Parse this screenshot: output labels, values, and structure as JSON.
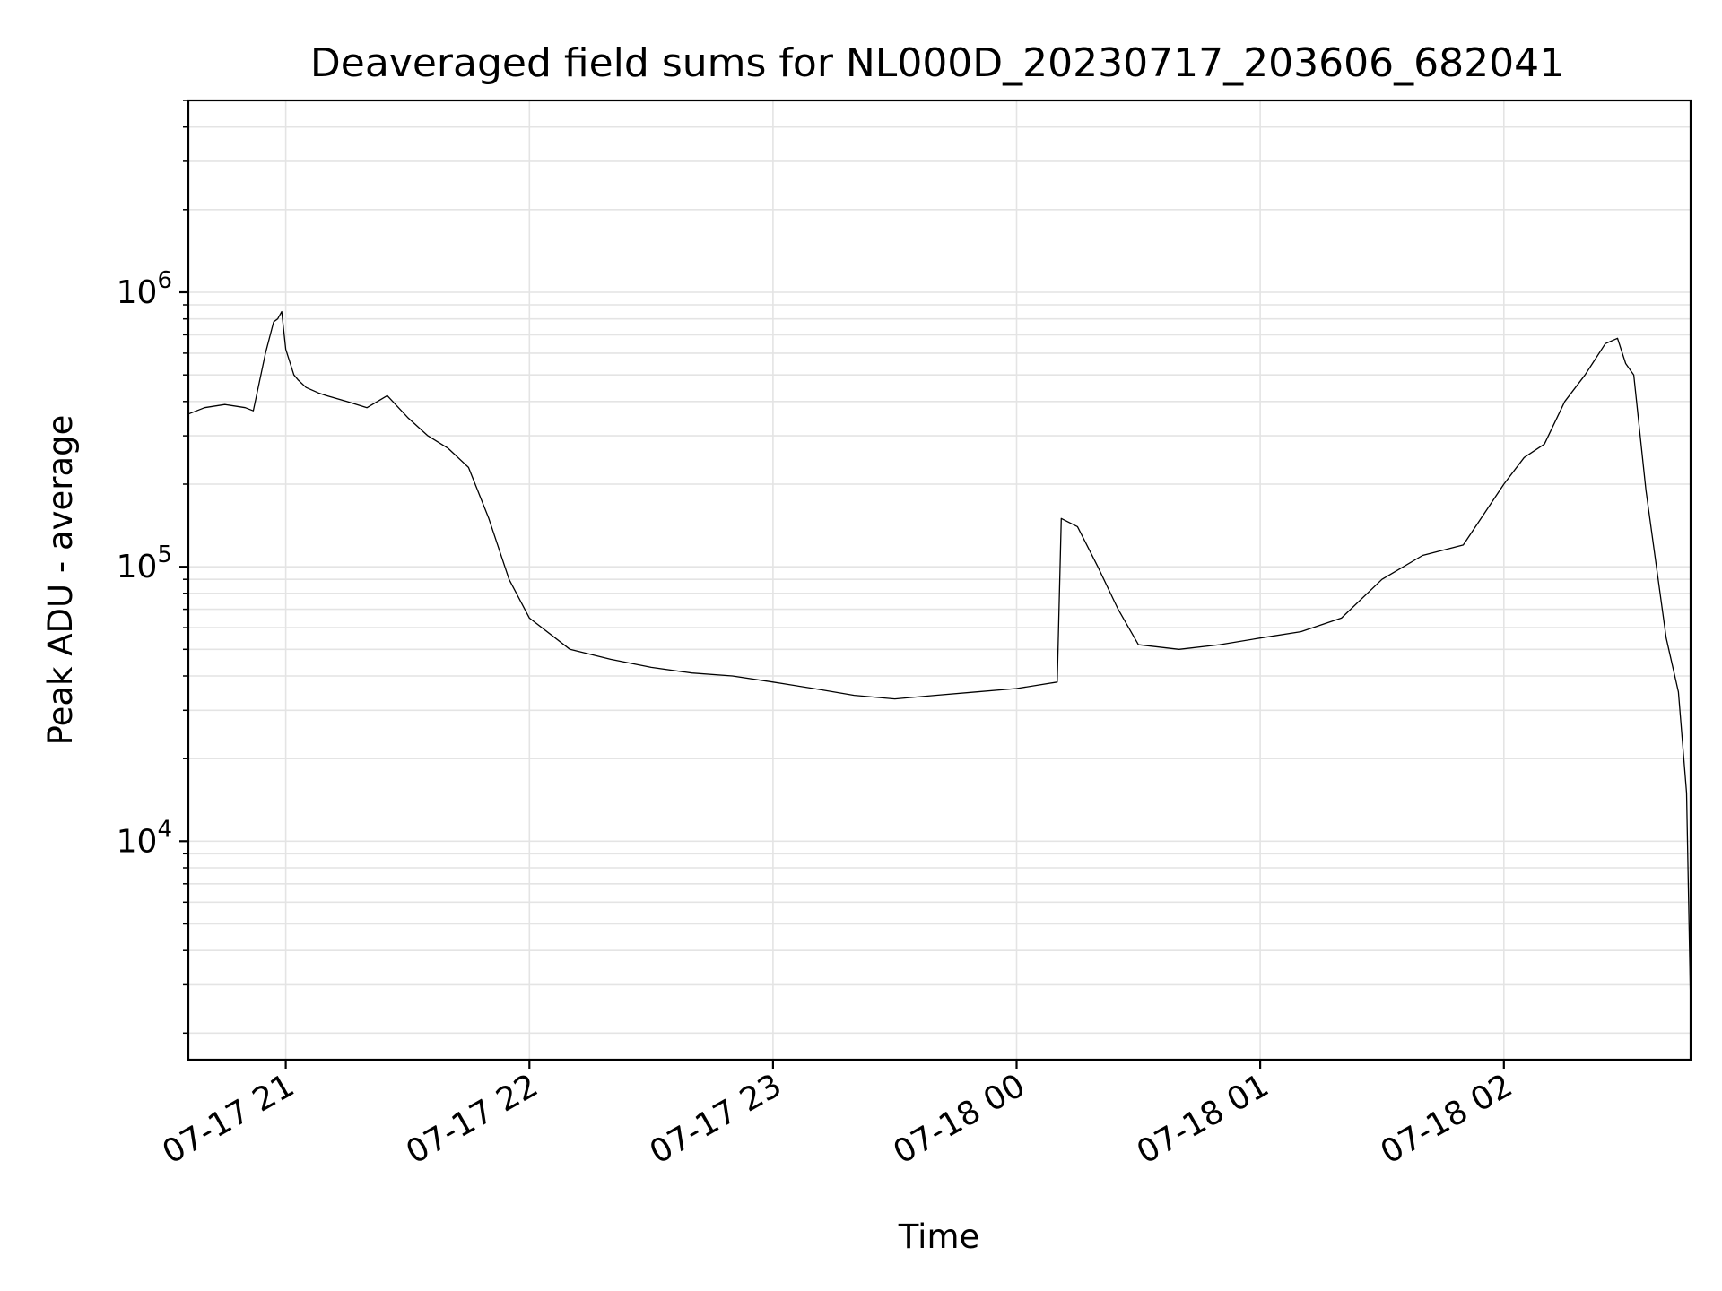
{
  "chart_data": {
    "type": "line",
    "title": "Deaveraged field sums for NL000D_20230717_203606_682041",
    "xlabel": "Time",
    "ylabel": "Peak ADU - average",
    "y_scale": "log",
    "grid": "major and minor",
    "x_tick_labels": [
      "07-17 21",
      "07-17 22",
      "07-17 23",
      "07-18 00",
      "07-18 01",
      "07-18 02"
    ],
    "x_ticks": [
      "2023-07-17 21:00",
      "2023-07-17 22:00",
      "2023-07-17 23:00",
      "2023-07-18 00:00",
      "2023-07-18 01:00",
      "2023-07-18 02:00"
    ],
    "xlim": [
      "2023-07-17 20:36",
      "2023-07-18 02:46"
    ],
    "y_ticks": [
      {
        "value": 10000,
        "base": "10",
        "exp": "4"
      },
      {
        "value": 100000,
        "base": "10",
        "exp": "5"
      },
      {
        "value": 1000000,
        "base": "10",
        "exp": "6"
      }
    ],
    "ylim": [
      1600,
      5000000
    ],
    "line_color": "#000000",
    "series": [
      {
        "x": [
          "2023-07-17 20:36",
          "2023-07-17 20:40",
          "2023-07-17 20:45",
          "2023-07-17 20:50",
          "2023-07-17 20:52",
          "2023-07-17 20:55",
          "2023-07-17 20:57",
          "2023-07-17 20:58",
          "2023-07-17 20:59",
          "2023-07-17 21:00",
          "2023-07-17 21:02",
          "2023-07-17 21:03",
          "2023-07-17 21:05",
          "2023-07-17 21:08",
          "2023-07-17 21:10",
          "2023-07-17 21:15",
          "2023-07-17 21:20",
          "2023-07-17 21:25",
          "2023-07-17 21:30",
          "2023-07-17 21:35",
          "2023-07-17 21:40",
          "2023-07-17 21:45",
          "2023-07-17 21:50",
          "2023-07-17 21:55",
          "2023-07-17 22:00",
          "2023-07-17 22:10",
          "2023-07-17 22:20",
          "2023-07-17 22:30",
          "2023-07-17 22:40",
          "2023-07-17 22:50",
          "2023-07-17 23:00",
          "2023-07-17 23:10",
          "2023-07-17 23:20",
          "2023-07-17 23:30",
          "2023-07-17 23:40",
          "2023-07-17 23:50",
          "2023-07-18 00:00",
          "2023-07-18 00:10",
          "2023-07-18 00:11",
          "2023-07-18 00:15",
          "2023-07-18 00:20",
          "2023-07-18 00:25",
          "2023-07-18 00:30",
          "2023-07-18 00:40",
          "2023-07-18 00:50",
          "2023-07-18 01:00",
          "2023-07-18 01:10",
          "2023-07-18 01:20",
          "2023-07-18 01:30",
          "2023-07-18 01:40",
          "2023-07-18 01:50",
          "2023-07-18 02:00",
          "2023-07-18 02:05",
          "2023-07-18 02:10",
          "2023-07-18 02:15",
          "2023-07-18 02:20",
          "2023-07-18 02:25",
          "2023-07-18 02:28",
          "2023-07-18 02:30",
          "2023-07-18 02:32",
          "2023-07-18 02:35",
          "2023-07-18 02:40",
          "2023-07-18 02:43",
          "2023-07-18 02:45",
          "2023-07-18 02:46"
        ],
        "y": [
          360000,
          380000,
          390000,
          380000,
          370000,
          600000,
          780000,
          800000,
          850000,
          620000,
          500000,
          480000,
          450000,
          430000,
          420000,
          400000,
          380000,
          420000,
          350000,
          300000,
          270000,
          230000,
          150000,
          90000,
          65000,
          50000,
          46000,
          43000,
          41000,
          40000,
          38000,
          36000,
          34000,
          33000,
          34000,
          35000,
          36000,
          38000,
          150000,
          140000,
          100000,
          70000,
          52000,
          50000,
          52000,
          55000,
          58000,
          65000,
          90000,
          110000,
          120000,
          200000,
          250000,
          280000,
          400000,
          500000,
          650000,
          680000,
          550000,
          500000,
          190000,
          55000,
          35000,
          15000,
          2500
        ]
      }
    ]
  }
}
